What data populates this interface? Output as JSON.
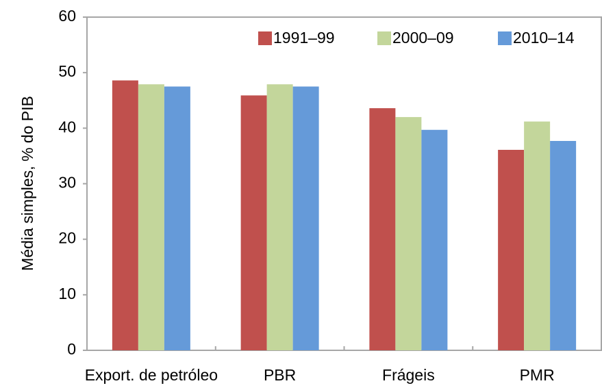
{
  "chart_data": {
    "type": "bar",
    "y_label": "Média simples, % do PIB",
    "categories": [
      "Export. de petróleo",
      "PBR",
      "Frágeis",
      "PMR"
    ],
    "series": [
      {
        "name": "1991–99",
        "color": "#c0504d",
        "values": [
          48.6,
          45.9,
          43.6,
          36.1
        ]
      },
      {
        "name": "2000–09",
        "color": "#c3d69b",
        "values": [
          47.9,
          47.9,
          42.0,
          41.2
        ]
      },
      {
        "name": "2010–14",
        "color": "#659ad9",
        "values": [
          47.5,
          47.5,
          39.7,
          37.7
        ]
      }
    ],
    "ylim": [
      0,
      60
    ],
    "yticks": [
      0,
      10,
      20,
      30,
      40,
      50,
      60
    ],
    "legend": "top-right",
    "grid": false
  }
}
